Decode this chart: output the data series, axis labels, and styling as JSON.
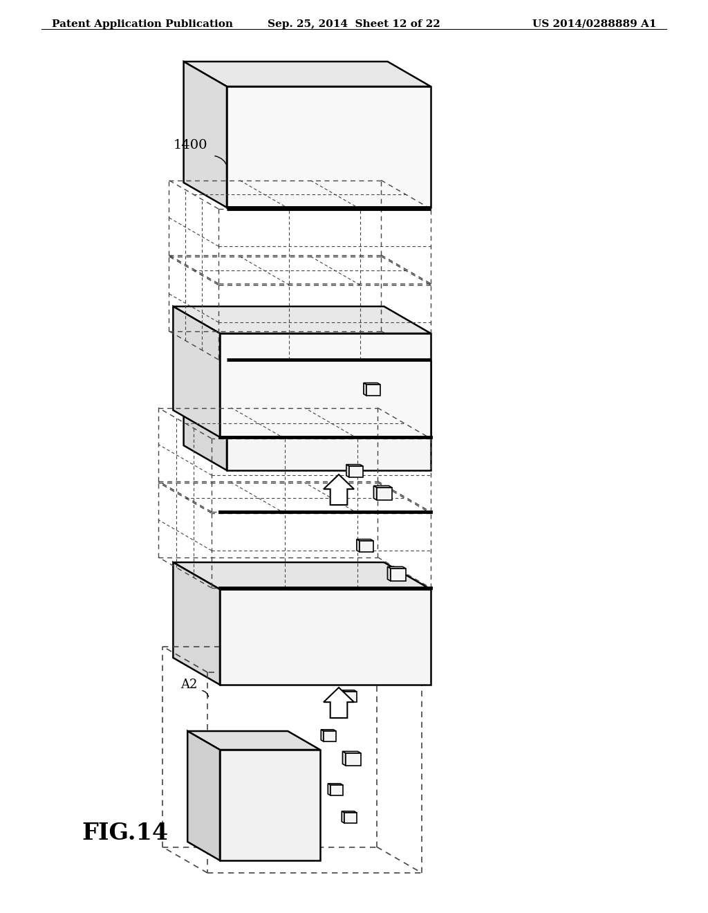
{
  "bg_color": "#ffffff",
  "line_color": "#000000",
  "dashed_color": "#444444",
  "header_left": "Patent Application Publication",
  "header_mid": "Sep. 25, 2014  Sheet 12 of 22",
  "header_right": "US 2014/0288889 A1",
  "figure_label": "FIG.14",
  "label_1400": "1400",
  "label_A2": "A2",
  "header_font_size": 11,
  "fig_label_font_size": 24
}
